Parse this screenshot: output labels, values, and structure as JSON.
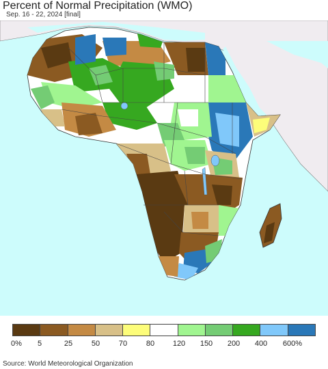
{
  "header": {
    "title": "Percent of Normal Precipitation (WMO)",
    "subtitle": "Sep. 16 - 22, 2024 [final]"
  },
  "map": {
    "ocean_color": "#cdfcfc",
    "other_land_color": "#f0ecf0"
  },
  "legend": {
    "colors": [
      "#5a3a12",
      "#8b5a22",
      "#c48a44",
      "#d8c088",
      "#fdfd7a",
      "#ffffff",
      "#a0f590",
      "#74cc74",
      "#36a820",
      "#80c8fa",
      "#2a78b8"
    ],
    "labels": [
      "0%",
      "5",
      "25",
      "50",
      "70",
      "80",
      "120",
      "150",
      "200",
      "400",
      "600%"
    ]
  },
  "footer": {
    "source": "Source: World Meteorological Organization"
  }
}
